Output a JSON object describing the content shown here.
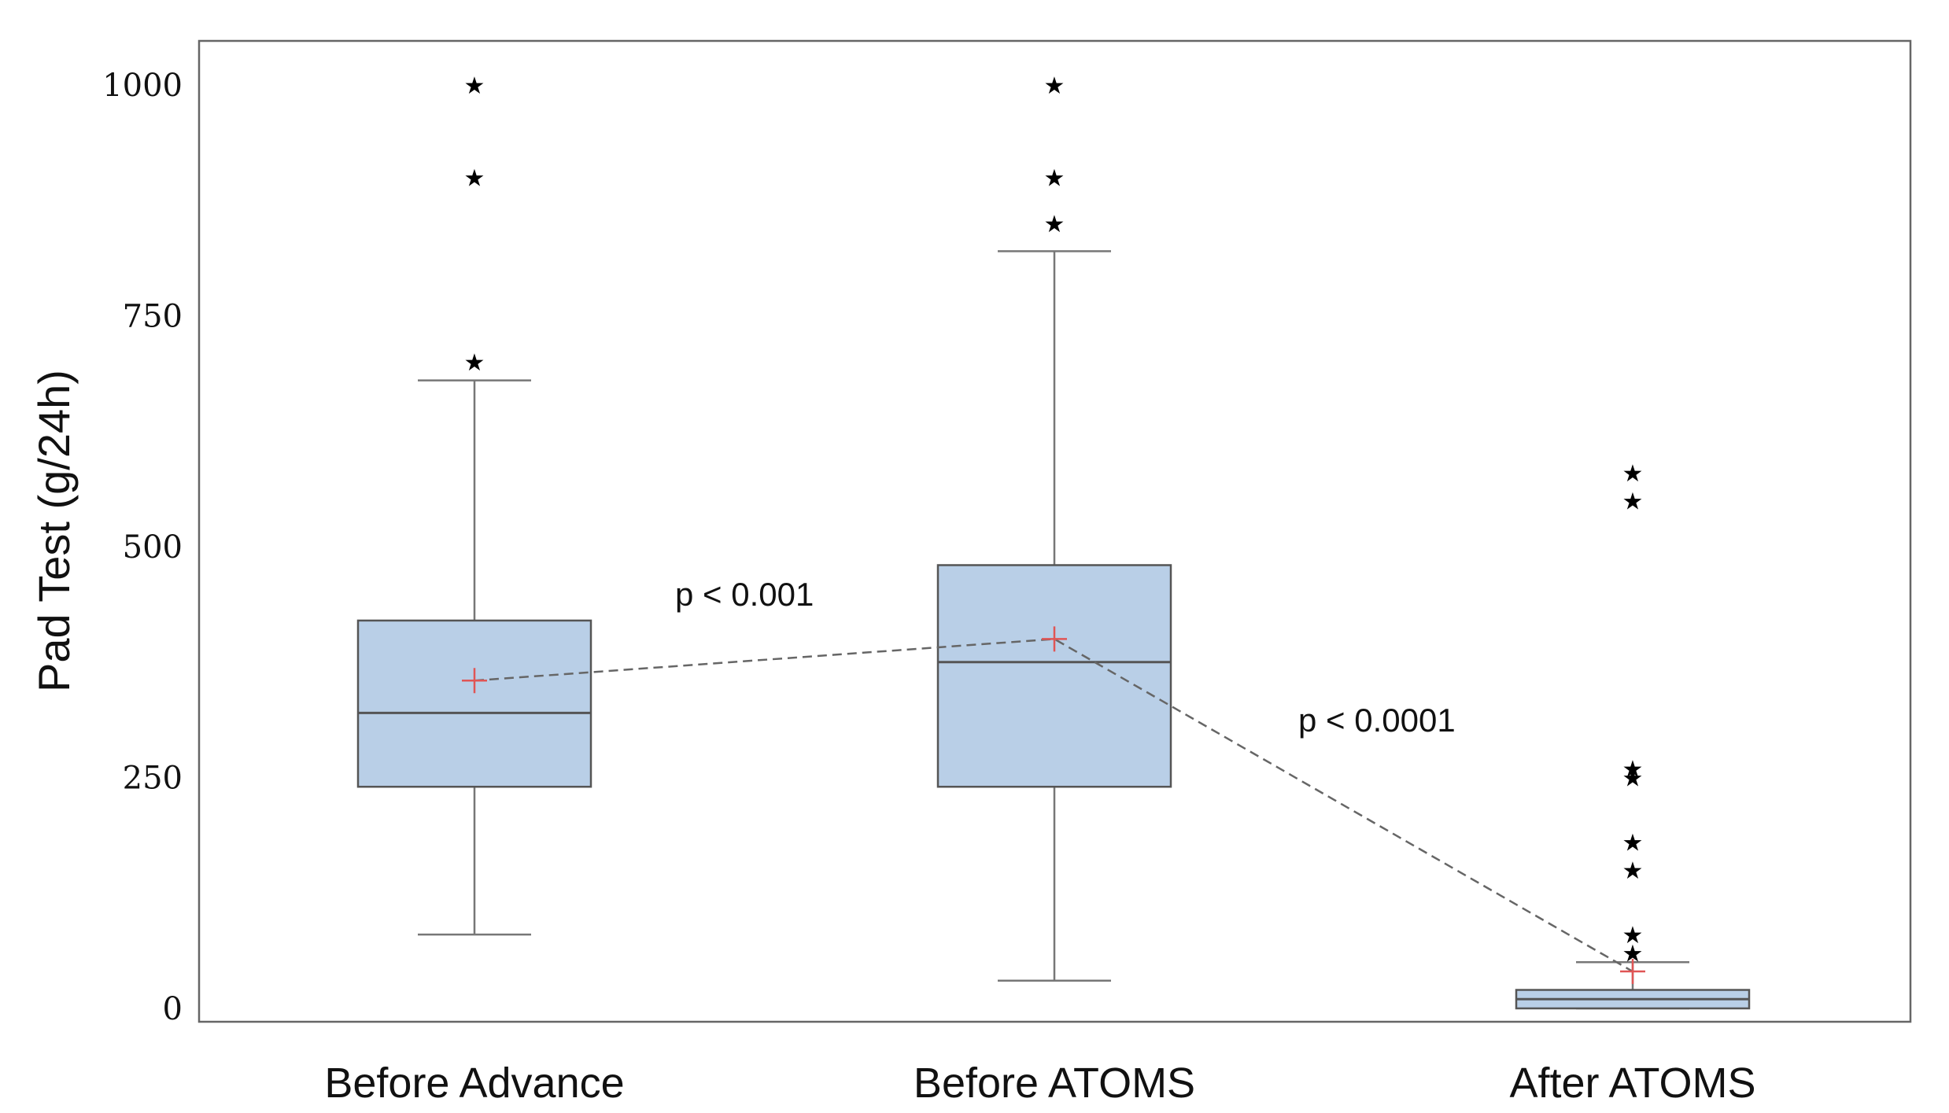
{
  "chart_data": {
    "type": "box",
    "ylabel": "Pad Test (g/24h)",
    "ylim": [
      0,
      1000
    ],
    "yticks": [
      0,
      250,
      500,
      750,
      1000
    ],
    "grid": false,
    "categories": [
      "Before Advance",
      "Before ATOMS",
      "After ATOMS"
    ],
    "boxes": [
      {
        "category": "Before Advance",
        "whisker_low": 80,
        "q1": 240,
        "median": 320,
        "q3": 420,
        "whisker_high": 680,
        "mean": 355,
        "outliers": [
          700,
          900,
          1000
        ]
      },
      {
        "category": "Before ATOMS",
        "whisker_low": 30,
        "q1": 240,
        "median": 375,
        "q3": 480,
        "whisker_high": 820,
        "mean": 400,
        "outliers": [
          850,
          900,
          1000
        ]
      },
      {
        "category": "After ATOMS",
        "whisker_low": 0,
        "q1": 0,
        "median": 10,
        "q3": 20,
        "whisker_high": 50,
        "mean": 40,
        "outliers": [
          60,
          80,
          150,
          180,
          250,
          260,
          550,
          580
        ]
      }
    ],
    "mean_line": {
      "style": "dashed",
      "color": "#666666"
    },
    "annotations": [
      {
        "text": "p < 0.001",
        "between": [
          "Before Advance",
          "Before ATOMS"
        ]
      },
      {
        "text": "p < 0.0001",
        "between": [
          "Before ATOMS",
          "After ATOMS"
        ]
      }
    ],
    "colors": {
      "box_fill": "#b9cfe7",
      "box_stroke": "#555555",
      "mean_marker": "#e05555",
      "outlier": "#000000"
    }
  }
}
